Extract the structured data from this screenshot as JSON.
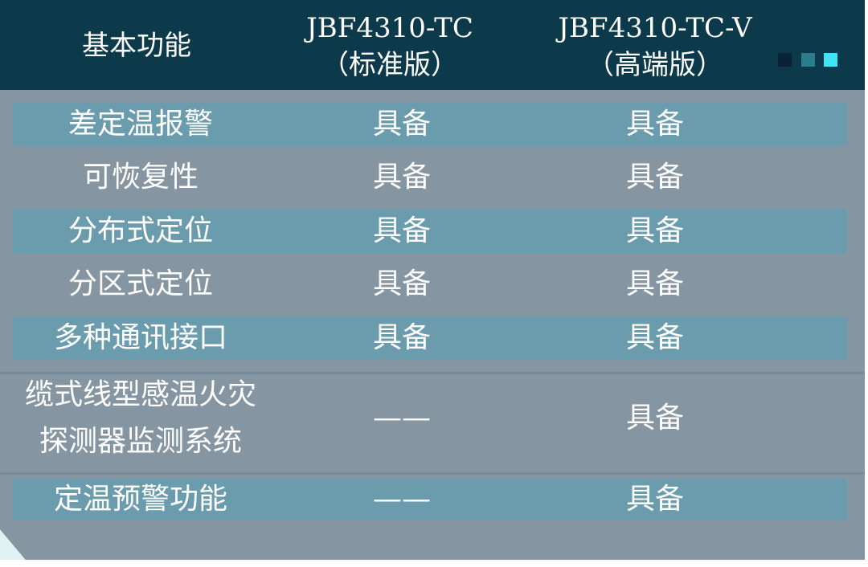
{
  "header": {
    "col0": "基本功能",
    "col1_line1": "JBF4310-TC",
    "col1_line2": "（标准版）",
    "col2_line1": "JBF4310-TC-V",
    "col2_line2": "（高端版）",
    "decor_colors": [
      "#0a2236",
      "#2b7d8e",
      "#3fe3f5"
    ]
  },
  "rows": [
    {
      "feature": "差定温报警",
      "standard": "具备",
      "advanced": "具备"
    },
    {
      "feature": "可恢复性",
      "standard": "具备",
      "advanced": "具备"
    },
    {
      "feature": "分布式定位",
      "standard": "具备",
      "advanced": "具备"
    },
    {
      "feature": "分区式定位",
      "standard": "具备",
      "advanced": "具备"
    },
    {
      "feature": "多种通讯接口",
      "standard": "具备",
      "advanced": "具备"
    },
    {
      "feature_line1": "缆式线型感温火灾",
      "feature_line2": "探测器监测系统",
      "standard": "——",
      "advanced": "具备"
    },
    {
      "feature": "定温预警功能",
      "standard": "——",
      "advanced": "具备"
    }
  ],
  "colors": {
    "header_bg": "#0c3a4a",
    "body_bg": "#8596a2",
    "stripe_bg": "#6b9cae"
  }
}
